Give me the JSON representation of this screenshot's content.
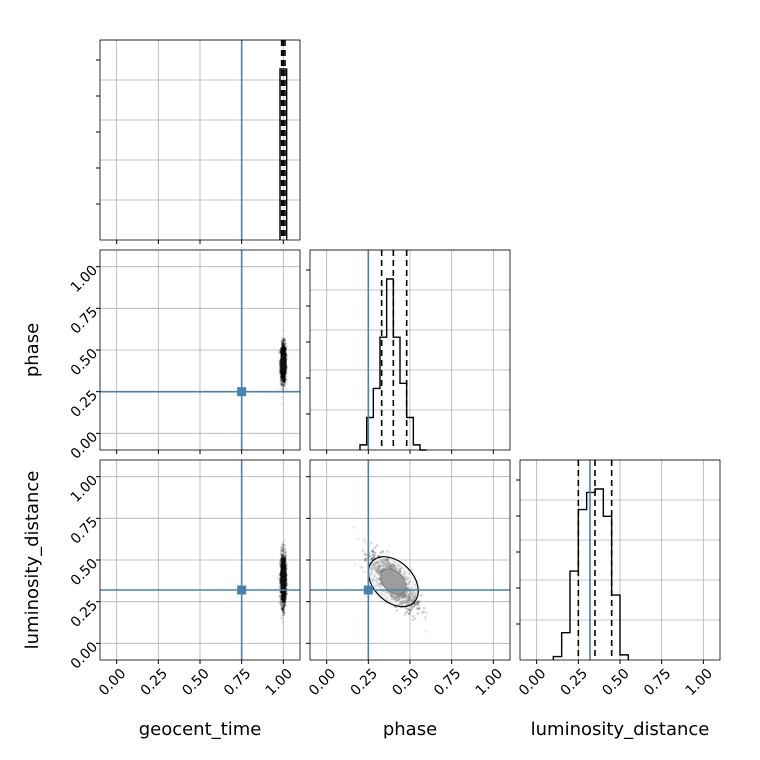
{
  "chart_data": {
    "type": "corner",
    "parameters": [
      {
        "key": "geocent_time",
        "label": "geocent_time",
        "truth": 0.75
      },
      {
        "key": "phase",
        "label": "phase",
        "truth": 0.25
      },
      {
        "key": "luminosity_distance",
        "label": "luminosity_distance",
        "truth": 0.32
      }
    ],
    "axis_range": [
      -0.1,
      1.1
    ],
    "ticks": [
      0.0,
      0.25,
      0.5,
      0.75,
      1.0
    ],
    "tick_labels": [
      "0.00",
      "0.25",
      "0.50",
      "0.75",
      "1.00"
    ],
    "grid": true,
    "truth_color": "#4682b4",
    "histograms": [
      {
        "parameter": "geocent_time",
        "bin_edges": [
          0.98,
          1.02
        ],
        "values": [
          1.0
        ],
        "quantiles": [
          0.99,
          1.0,
          1.01
        ]
      },
      {
        "parameter": "phase",
        "bin_edges": [
          0.2,
          0.24,
          0.28,
          0.32,
          0.36,
          0.4,
          0.44,
          0.48,
          0.52,
          0.56,
          0.6
        ],
        "values": [
          0.03,
          0.19,
          0.36,
          0.66,
          1.0,
          0.66,
          0.39,
          0.19,
          0.03,
          0.0
        ],
        "quantiles": [
          0.33,
          0.4,
          0.48
        ]
      },
      {
        "parameter": "luminosity_distance",
        "bin_edges": [
          0.1,
          0.15,
          0.2,
          0.25,
          0.3,
          0.35,
          0.4,
          0.45,
          0.5,
          0.55
        ],
        "values": [
          0.02,
          0.16,
          0.52,
          0.88,
          0.98,
          1.0,
          0.84,
          0.38,
          0.03
        ],
        "quantiles": [
          0.25,
          0.35,
          0.45
        ]
      }
    ],
    "scatter_2d": [
      {
        "x": "geocent_time",
        "y": "phase",
        "center": [
          1.0,
          0.42
        ],
        "spread": [
          0.008,
          0.06
        ],
        "correlation": 0.0,
        "contour_levels": []
      },
      {
        "x": "geocent_time",
        "y": "luminosity_distance",
        "center": [
          1.0,
          0.38
        ],
        "spread": [
          0.008,
          0.08
        ],
        "correlation": 0.0,
        "contour_levels": []
      },
      {
        "x": "phase",
        "y": "luminosity_distance",
        "center": [
          0.4,
          0.37
        ],
        "spread": [
          0.07,
          0.085
        ],
        "correlation": -0.7,
        "contour_levels": [
          1.0,
          2.0
        ]
      }
    ]
  }
}
